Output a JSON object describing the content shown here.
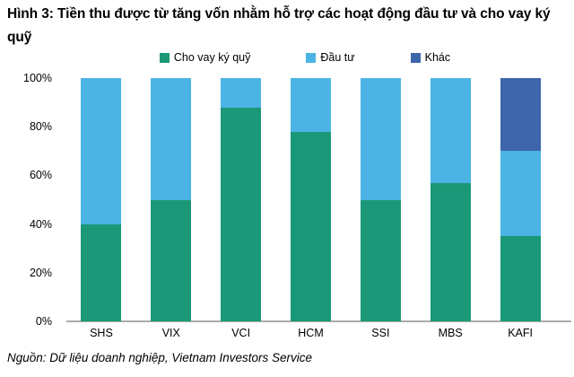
{
  "title": "Hình 3: Tiền thu được từ tăng vốn nhằm hỗ trợ các hoạt động đầu tư và cho vay ký quỹ",
  "source": "Nguồn: Dữ liệu doanh nghiệp, Vietnam Investors Service",
  "colors": {
    "margin_lending": "#1a9877",
    "investment": "#4bb4e4",
    "other": "#3d66ab",
    "axis_line": "#acacac",
    "text": "#000000"
  },
  "chart_data": {
    "type": "bar",
    "stacked": true,
    "title": "Hình 3: Tiền thu được từ tăng vốn nhằm hỗ trợ các hoạt động đầu tư và cho vay ký quỹ",
    "categories": [
      "SHS",
      "VIX",
      "VCI",
      "HCM",
      "SSI",
      "MBS",
      "KAFI"
    ],
    "series": [
      {
        "name": "Cho vay ký quỹ",
        "color_key": "margin_lending",
        "values": [
          40,
          50,
          88,
          78,
          50,
          57,
          35
        ]
      },
      {
        "name": "Đầu tư",
        "color_key": "investment",
        "values": [
          60,
          50,
          12,
          22,
          50,
          43,
          35
        ]
      },
      {
        "name": "Khác",
        "color_key": "other",
        "values": [
          0,
          0,
          0,
          0,
          0,
          0,
          30
        ]
      }
    ],
    "yticks": [
      "0%",
      "20%",
      "40%",
      "60%",
      "80%",
      "100%"
    ],
    "ytick_values": [
      0,
      20,
      40,
      60,
      80,
      100
    ],
    "ylim": [
      0,
      100
    ],
    "xlabel": "",
    "ylabel": "",
    "grid": false,
    "legend_position": "top"
  }
}
